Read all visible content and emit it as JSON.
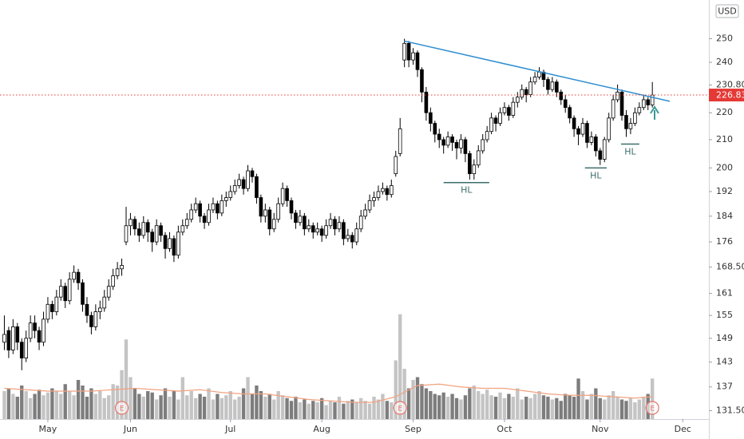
{
  "chart_data": {
    "type": "candlestick",
    "currency": "USD",
    "log_scale": true,
    "grid": false,
    "ylim": [
      129.6,
      267.3
    ],
    "yticks": [
      250,
      240,
      {
        "value": 230.8,
        "label": "230.80"
      },
      220,
      210,
      200,
      192,
      184,
      176,
      {
        "value": 168.5,
        "label": "168.50"
      },
      161,
      155,
      149,
      143,
      137,
      {
        "value": 131.5,
        "label": "131.50"
      }
    ],
    "xlim": [
      -1,
      162
    ],
    "xticks": [
      {
        "value": 10,
        "label": "May"
      },
      {
        "value": 29,
        "label": "Jun"
      },
      {
        "value": 52,
        "label": "Jul"
      },
      {
        "value": 73,
        "label": "Aug"
      },
      {
        "value": 94,
        "label": "Sep"
      },
      {
        "value": 115,
        "label": "Oct"
      },
      {
        "value": 137,
        "label": "Nov"
      },
      {
        "value": 156,
        "label": "Dec"
      }
    ],
    "up_color": "#ffffff",
    "down_color": "#000000",
    "ohlc": [
      [
        148,
        155,
        146,
        150
      ],
      [
        151,
        152,
        144,
        146
      ],
      [
        146,
        154,
        145,
        152
      ],
      [
        152,
        153,
        146,
        148
      ],
      [
        148,
        149,
        141,
        144
      ],
      [
        144,
        151,
        143,
        149
      ],
      [
        149,
        155,
        148,
        153
      ],
      [
        153,
        155,
        149,
        151
      ],
      [
        151,
        152,
        146,
        148
      ],
      [
        148,
        156,
        147,
        154
      ],
      [
        154,
        160,
        153,
        158
      ],
      [
        158,
        159,
        154,
        156
      ],
      [
        156,
        162,
        155,
        160
      ],
      [
        160,
        165,
        159,
        163
      ],
      [
        163,
        164,
        157,
        159
      ],
      [
        159,
        167,
        158,
        165
      ],
      [
        165,
        169,
        164,
        167
      ],
      [
        167,
        168,
        162,
        164
      ],
      [
        164,
        165,
        156,
        158
      ],
      [
        158,
        160,
        153,
        155
      ],
      [
        155,
        156,
        150,
        152
      ],
      [
        152,
        158,
        151,
        156
      ],
      [
        156,
        159,
        154,
        157
      ],
      [
        157,
        162,
        156,
        160
      ],
      [
        160,
        165,
        159,
        163
      ],
      [
        163,
        168,
        162,
        166
      ],
      [
        166,
        170,
        165,
        168
      ],
      [
        168,
        171,
        166,
        169
      ],
      [
        176,
        187,
        175,
        181
      ],
      [
        181,
        185,
        178,
        183
      ],
      [
        183,
        184,
        178,
        180
      ],
      [
        180,
        182,
        176,
        178
      ],
      [
        178,
        184,
        177,
        182
      ],
      [
        182,
        183,
        176,
        179
      ],
      [
        179,
        180,
        173,
        176
      ],
      [
        176,
        183,
        175,
        181
      ],
      [
        181,
        182,
        176,
        178
      ],
      [
        178,
        179,
        171,
        174
      ],
      [
        174,
        179,
        173,
        177
      ],
      [
        177,
        178,
        170,
        172
      ],
      [
        172,
        181,
        171,
        179
      ],
      [
        179,
        183,
        178,
        181
      ],
      [
        181,
        185,
        180,
        183
      ],
      [
        183,
        188,
        182,
        186
      ],
      [
        186,
        190,
        185,
        188
      ],
      [
        188,
        189,
        182,
        184
      ],
      [
        184,
        185,
        180,
        182
      ],
      [
        182,
        188,
        181,
        186
      ],
      [
        186,
        190,
        185,
        188
      ],
      [
        188,
        189,
        183,
        185
      ],
      [
        185,
        191,
        184,
        189
      ],
      [
        189,
        192,
        187,
        190
      ],
      [
        190,
        194,
        189,
        192
      ],
      [
        192,
        196,
        191,
        194
      ],
      [
        194,
        198,
        193,
        196
      ],
      [
        196,
        197,
        191,
        193
      ],
      [
        193,
        201,
        192,
        199
      ],
      [
        199,
        200,
        195,
        197
      ],
      [
        197,
        198,
        188,
        190
      ],
      [
        190,
        191,
        182,
        184
      ],
      [
        184,
        188,
        182,
        186
      ],
      [
        186,
        187,
        178,
        180
      ],
      [
        180,
        185,
        179,
        183
      ],
      [
        183,
        190,
        182,
        188
      ],
      [
        188,
        195,
        187,
        193
      ],
      [
        193,
        194,
        187,
        189
      ],
      [
        189,
        190,
        183,
        185
      ],
      [
        185,
        186,
        180,
        182
      ],
      [
        182,
        186,
        181,
        184
      ],
      [
        184,
        185,
        178,
        180
      ],
      [
        180,
        183,
        179,
        181
      ],
      [
        181,
        182,
        177,
        179
      ],
      [
        179,
        182,
        178,
        180
      ],
      [
        180,
        181,
        176,
        178
      ],
      [
        178,
        183,
        177,
        181
      ],
      [
        181,
        185,
        180,
        183
      ],
      [
        183,
        184,
        178,
        180
      ],
      [
        180,
        184,
        179,
        182
      ],
      [
        182,
        183,
        175,
        177
      ],
      [
        177,
        180,
        176,
        178
      ],
      [
        178,
        179,
        174,
        176
      ],
      [
        176,
        182,
        175,
        180
      ],
      [
        180,
        186,
        179,
        184
      ],
      [
        184,
        188,
        183,
        186
      ],
      [
        186,
        191,
        185,
        189
      ],
      [
        189,
        192,
        187,
        190
      ],
      [
        190,
        194,
        189,
        192
      ],
      [
        192,
        195,
        191,
        193
      ],
      [
        193,
        194,
        189,
        191
      ],
      [
        191,
        196,
        190,
        194
      ],
      [
        198,
        206,
        197,
        204
      ],
      [
        205,
        218,
        204,
        214
      ],
      [
        241,
        250,
        238,
        248
      ],
      [
        248,
        249,
        238,
        241
      ],
      [
        241,
        246,
        239,
        244
      ],
      [
        244,
        245,
        234,
        237
      ],
      [
        237,
        238,
        224,
        228
      ],
      [
        228,
        230,
        217,
        220
      ],
      [
        220,
        222,
        213,
        216
      ],
      [
        216,
        217,
        209,
        212
      ],
      [
        212,
        214,
        207,
        210
      ],
      [
        210,
        211,
        205,
        208
      ],
      [
        208,
        213,
        207,
        211
      ],
      [
        211,
        212,
        206,
        209
      ],
      [
        209,
        210,
        203,
        207
      ],
      [
        207,
        212,
        205,
        210
      ],
      [
        210,
        211,
        202,
        205
      ],
      [
        205,
        206,
        196,
        198
      ],
      [
        198,
        203,
        196,
        201
      ],
      [
        201,
        208,
        200,
        206
      ],
      [
        206,
        212,
        205,
        210
      ],
      [
        210,
        215,
        209,
        213
      ],
      [
        213,
        220,
        212,
        218
      ],
      [
        218,
        219,
        213,
        216
      ],
      [
        216,
        222,
        215,
        220
      ],
      [
        220,
        224,
        219,
        222
      ],
      [
        222,
        223,
        217,
        219
      ],
      [
        219,
        226,
        218,
        224
      ],
      [
        224,
        228,
        222,
        226
      ],
      [
        226,
        231,
        225,
        229
      ],
      [
        229,
        230,
        224,
        227
      ],
      [
        227,
        234,
        226,
        232
      ],
      [
        232,
        236,
        231,
        234
      ],
      [
        234,
        238,
        233,
        236
      ],
      [
        236,
        237,
        230,
        233
      ],
      [
        233,
        234,
        227,
        229
      ],
      [
        229,
        234,
        228,
        232
      ],
      [
        232,
        233,
        226,
        228
      ],
      [
        228,
        229,
        223,
        225
      ],
      [
        225,
        227,
        220,
        222
      ],
      [
        222,
        223,
        216,
        218
      ],
      [
        218,
        219,
        211,
        214
      ],
      [
        214,
        215,
        208,
        212
      ],
      [
        212,
        218,
        211,
        216
      ],
      [
        216,
        217,
        207,
        209
      ],
      [
        209,
        213,
        208,
        211
      ],
      [
        211,
        212,
        204,
        206
      ],
      [
        206,
        207,
        201,
        203
      ],
      [
        203,
        211,
        202,
        210
      ],
      [
        210,
        220,
        209,
        218
      ],
      [
        218,
        227,
        217,
        225
      ],
      [
        225,
        231,
        224,
        228
      ],
      [
        228,
        229,
        217,
        219
      ],
      [
        219,
        221,
        211,
        214
      ],
      [
        214,
        218,
        212,
        216
      ],
      [
        216,
        222,
        215,
        220
      ],
      [
        220,
        224,
        219,
        222
      ],
      [
        222,
        227,
        221,
        225
      ],
      [
        225,
        226,
        221,
        223
      ],
      [
        223,
        232,
        222,
        226.83
      ]
    ],
    "volume_lim": [
      0,
      100
    ],
    "volume_up_color": "#c4c4c4",
    "volume_down_color": "#7d7d7d",
    "volume": [
      20,
      22,
      18,
      16,
      24,
      20,
      15,
      18,
      21,
      17,
      19,
      22,
      20,
      18,
      25,
      20,
      17,
      28,
      24,
      16,
      22,
      18,
      20,
      15,
      17,
      25,
      24,
      35,
      57,
      30,
      22,
      18,
      16,
      20,
      19,
      14,
      17,
      22,
      16,
      20,
      14,
      30,
      17,
      20,
      15,
      18,
      16,
      22,
      14,
      18,
      15,
      17,
      20,
      14,
      16,
      22,
      30,
      18,
      24,
      20,
      16,
      18,
      14,
      20,
      17,
      15,
      13,
      16,
      12,
      14,
      11,
      13,
      12,
      15,
      10,
      13,
      12,
      16,
      11,
      13,
      14,
      12,
      15,
      13,
      11,
      16,
      14,
      18,
      13,
      12,
      42,
      75,
      36,
      22,
      28,
      30,
      25,
      22,
      20,
      18,
      17,
      19,
      16,
      18,
      15,
      14,
      17,
      22,
      24,
      20,
      18,
      21,
      17,
      16,
      19,
      15,
      18,
      16,
      22,
      14,
      16,
      15,
      18,
      20,
      17,
      16,
      14,
      15,
      13,
      18,
      17,
      16,
      29,
      20,
      14,
      18,
      22,
      15,
      14,
      17,
      20,
      16,
      14,
      13,
      15,
      12,
      14,
      16,
      18,
      29
    ],
    "volume_ma": {
      "color": "#f2a27f",
      "x": [
        0,
        5,
        10,
        15,
        20,
        25,
        30,
        35,
        40,
        45,
        50,
        55,
        60,
        65,
        70,
        75,
        80,
        85,
        90,
        95,
        100,
        105,
        110,
        115,
        120,
        125,
        130,
        135,
        140,
        145,
        149
      ],
      "values": [
        22,
        21,
        20,
        20,
        20,
        21,
        22,
        21,
        20,
        21,
        19,
        18,
        18,
        16,
        14,
        13,
        12,
        12,
        16,
        24,
        25,
        23,
        22,
        22,
        20,
        18,
        17,
        17,
        16,
        15,
        16
      ]
    },
    "trendline": {
      "color": "#2f8fd0",
      "x": [
        92,
        153
      ],
      "values": [
        249,
        224.4
      ]
    },
    "last_price": 226.83,
    "last_price_color": "#e53935",
    "annotations": [
      {
        "text": "HL",
        "x": [
          101,
          111.5
        ],
        "y": 195,
        "color": "#3c6e6b"
      },
      {
        "text": "HL",
        "x": [
          133.5,
          138.5
        ],
        "y": 200,
        "color": "#3c6e6b"
      },
      {
        "text": "HL",
        "x": [
          141.8,
          146
        ],
        "y": 208.4,
        "color": "#3c6e6b"
      }
    ],
    "events": [
      {
        "label": "E",
        "x": 27
      },
      {
        "label": "E",
        "x": 91
      },
      {
        "label": "E",
        "x": 149
      }
    ],
    "event_color": "#e57368"
  }
}
